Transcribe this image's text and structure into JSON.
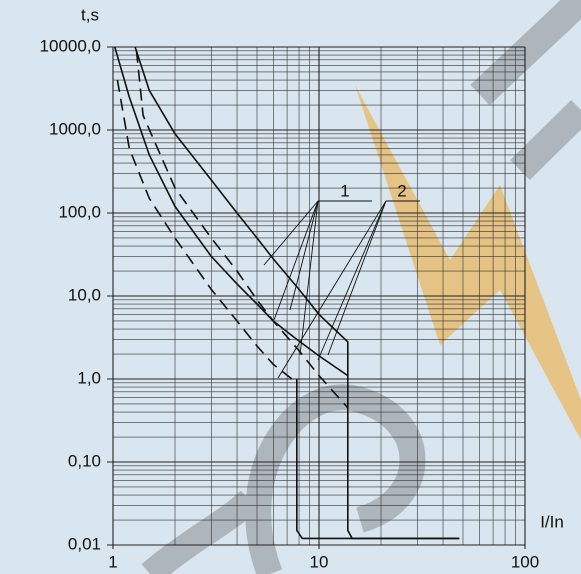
{
  "chart_data": {
    "type": "line",
    "log_x": true,
    "log_y": true,
    "grid": true,
    "x_label": "I/In",
    "y_label": "t,s",
    "color": "#111111",
    "xlim": [
      1,
      100
    ],
    "xticks": [
      1,
      10,
      100
    ],
    "ylim": [
      0.01,
      10000
    ],
    "yticks": [
      {
        "value": 10000,
        "label": "10000,0"
      },
      {
        "value": 1000,
        "label": "1000,0"
      },
      {
        "value": 100,
        "label": "100,0"
      },
      {
        "value": 10,
        "label": "10,0"
      },
      {
        "value": 1,
        "label": "1,0"
      },
      {
        "value": 0.1,
        "label": "0,10"
      },
      {
        "value": 0.01,
        "label": "0,01"
      }
    ],
    "annotations": [
      {
        "text": "1"
      },
      {
        "text": "2"
      }
    ],
    "series": [
      {
        "dashed": false,
        "x": [
          1.28,
          1.5,
          2,
          3,
          4,
          5,
          6,
          8,
          10,
          13.8,
          13.8,
          13.8,
          14.5,
          20,
          48
        ],
        "values": [
          10000,
          3000,
          900,
          250,
          100,
          50,
          28,
          12,
          6,
          2.8,
          0.05,
          0.015,
          0.012,
          0.012,
          0.012
        ]
      },
      {
        "dashed": false,
        "x": [
          1.02,
          1.2,
          1.5,
          2,
          3,
          4,
          5,
          6,
          7.8,
          10,
          13.8
        ],
        "values": [
          10000,
          2500,
          500,
          120,
          30,
          14,
          8,
          5,
          3,
          1.9,
          1.1
        ]
      },
      {
        "dashed": false,
        "x": [
          7.8,
          7.8,
          8.3,
          10,
          20,
          48
        ],
        "values": [
          1,
          0.015,
          0.012,
          0.012,
          0.012,
          0.012
        ]
      },
      {
        "dashed": true,
        "x": [
          1.3,
          1.4,
          2,
          3,
          4,
          5,
          6,
          8,
          10,
          13.8
        ],
        "values": [
          9000,
          1500,
          200,
          50,
          20,
          9,
          5,
          2.2,
          1.1,
          0.45
        ]
      },
      {
        "dashed": true,
        "x": [
          1.05,
          1.2,
          1.5,
          2,
          3,
          4,
          5,
          6,
          7.8
        ],
        "values": [
          4000,
          600,
          150,
          50,
          12,
          5,
          2.5,
          1.5,
          0.9
        ]
      }
    ]
  }
}
